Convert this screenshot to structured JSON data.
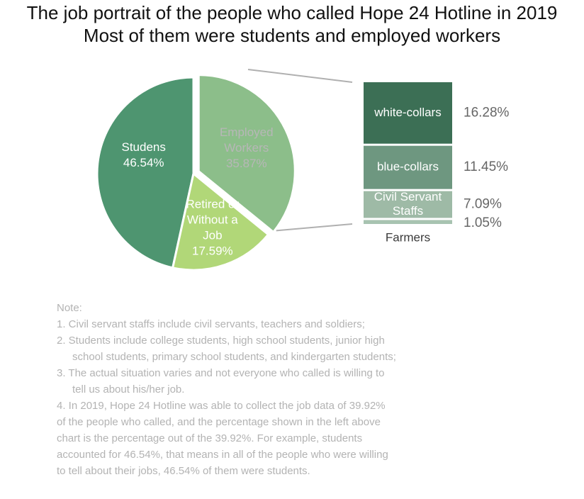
{
  "title": "The job portrait of the people who called Hope 24 Hotline in 2019",
  "subtitle": "Most of them were students and employed workers",
  "chart_data": [
    {
      "type": "pie",
      "slices": [
        {
          "label_lines": [
            "Studens",
            "46.54%"
          ],
          "value": 46.54,
          "color": "#4e9570"
        },
        {
          "label_lines": [
            "Employed",
            "Workers",
            "35.87%"
          ],
          "value": 35.87,
          "color": "#8cbe8a"
        },
        {
          "label_lines": [
            "Retired or",
            "Without a",
            "Job",
            "17.59%"
          ],
          "value": 17.59,
          "color": "#b1d778"
        }
      ],
      "exploded_slice": "Employed Workers"
    },
    {
      "type": "bar",
      "stacked": true,
      "breakdown_of": "Employed Workers",
      "segments": [
        {
          "label": "white-collars",
          "value": 16.28,
          "value_text": "16.28%",
          "color": "#3c6f55"
        },
        {
          "label": "blue-collars",
          "value": 11.45,
          "value_text": "11.45%",
          "color": "#6e9780"
        },
        {
          "label": "Civil Servant Staffs",
          "label_lines": [
            "Civil Servant",
            "Staffs"
          ],
          "value": 7.09,
          "value_text": "7.09%",
          "color": "#9ebaa6"
        },
        {
          "label": "Farmers",
          "value": 1.05,
          "value_text": "1.05%",
          "color": "#a8c3b1"
        }
      ]
    }
  ],
  "notes": {
    "heading": "Note:",
    "lines": [
      "1. Civil servant staffs include civil servants, teachers and soldiers;",
      "2. Students include college students, high school students, junior high",
      "school students, primary school students, and kindergarten students;",
      "3. The actual situation varies and not everyone who called is willing to",
      "tell us about his/her job.",
      "4. In 2019, Hope 24 Hotline was able to collect the job data of 39.92%",
      "of the people who called, and the percentage shown in the left above",
      "chart is the percentage out of the 39.92%. For example, students",
      "accounted for 46.54%, that means in all of the people who were willing",
      "to tell about their jobs, 46.54% of them were students."
    ]
  }
}
